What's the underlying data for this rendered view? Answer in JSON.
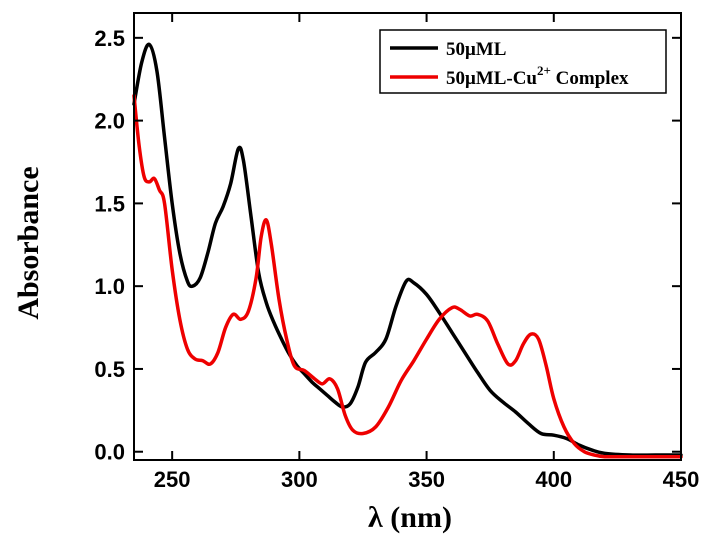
{
  "chart_data": {
    "type": "line",
    "xlabel": "λ (nm)",
    "ylabel": "Absorbance",
    "xlim": [
      235,
      450
    ],
    "ylim": [
      -0.05,
      2.65
    ],
    "xticks": [
      250,
      300,
      350,
      400,
      450
    ],
    "yticks": [
      0.0,
      0.5,
      1.0,
      1.5,
      2.0,
      2.5
    ],
    "xtick_labels": [
      "250",
      "300",
      "350",
      "400",
      "450"
    ],
    "ytick_labels": [
      "0.0",
      "0.5",
      "1.0",
      "1.5",
      "2.0",
      "2.5"
    ],
    "grid": false,
    "legend": {
      "position": "top-right",
      "entries": [
        {
          "base": "50μML",
          "sup": "",
          "suffix": ""
        },
        {
          "base": "50μML-Cu",
          "sup": "2+",
          "suffix": " Complex"
        }
      ]
    },
    "series": [
      {
        "name": "50μML",
        "color": "#000000",
        "x": [
          235,
          238,
          241,
          244,
          247,
          250,
          253,
          256,
          258,
          261,
          264,
          267,
          270,
          273,
          276,
          278,
          281,
          284,
          287,
          290,
          293,
          296,
          299,
          302,
          305,
          308,
          311,
          314,
          317,
          320,
          323,
          326,
          330,
          334,
          338,
          342,
          345,
          350,
          355,
          360,
          365,
          370,
          375,
          380,
          385,
          390,
          395,
          400,
          405,
          410,
          415,
          420,
          430,
          440,
          450
        ],
        "y": [
          2.1,
          2.35,
          2.46,
          2.3,
          1.9,
          1.5,
          1.2,
          1.03,
          1.0,
          1.05,
          1.2,
          1.38,
          1.48,
          1.62,
          1.83,
          1.76,
          1.42,
          1.08,
          0.9,
          0.78,
          0.68,
          0.59,
          0.52,
          0.47,
          0.42,
          0.38,
          0.34,
          0.3,
          0.27,
          0.29,
          0.39,
          0.54,
          0.6,
          0.68,
          0.88,
          1.03,
          1.02,
          0.95,
          0.84,
          0.72,
          0.6,
          0.48,
          0.37,
          0.3,
          0.24,
          0.17,
          0.11,
          0.1,
          0.08,
          0.04,
          0.01,
          -0.01,
          -0.02,
          -0.02,
          -0.02
        ]
      },
      {
        "name": "50μML-Cu2+ Complex",
        "color": "#ee0000",
        "x": [
          235,
          237,
          239,
          241,
          243,
          245,
          247,
          250,
          253,
          256,
          259,
          262,
          265,
          268,
          271,
          274,
          277,
          280,
          283,
          285,
          287,
          289,
          292,
          295,
          298,
          302,
          306,
          309,
          312,
          315,
          318,
          321,
          325,
          330,
          335,
          340,
          345,
          350,
          355,
          360,
          363,
          367,
          370,
          374,
          378,
          382,
          385,
          388,
          391,
          394,
          397,
          400,
          404,
          408,
          412,
          416,
          420,
          430,
          440,
          450
        ],
        "y": [
          2.15,
          1.85,
          1.66,
          1.63,
          1.65,
          1.58,
          1.5,
          1.1,
          0.8,
          0.62,
          0.56,
          0.55,
          0.53,
          0.6,
          0.75,
          0.83,
          0.8,
          0.85,
          1.05,
          1.3,
          1.4,
          1.25,
          0.92,
          0.68,
          0.52,
          0.49,
          0.44,
          0.41,
          0.44,
          0.38,
          0.22,
          0.13,
          0.11,
          0.15,
          0.27,
          0.43,
          0.55,
          0.68,
          0.8,
          0.87,
          0.86,
          0.82,
          0.83,
          0.79,
          0.65,
          0.53,
          0.55,
          0.65,
          0.71,
          0.68,
          0.52,
          0.32,
          0.15,
          0.05,
          0.0,
          -0.02,
          -0.03,
          -0.03,
          -0.03,
          -0.03
        ]
      }
    ]
  }
}
